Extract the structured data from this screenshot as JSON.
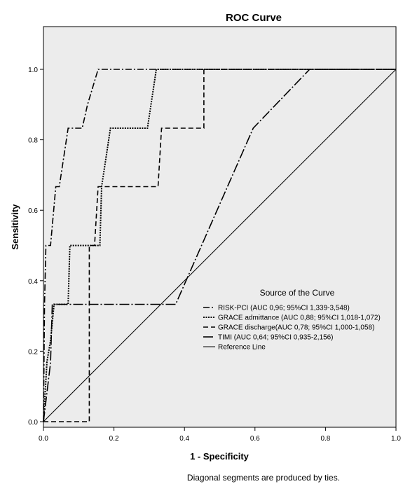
{
  "chart_data": {
    "type": "line",
    "title": "ROC Curve",
    "xlabel": "1 - Specificity",
    "ylabel": "Sensitivity",
    "xlim": [
      0,
      1
    ],
    "ylim": [
      -0.02,
      1.12
    ],
    "xticks": [
      0.0,
      0.2,
      0.4,
      0.6,
      0.8,
      1.0
    ],
    "yticks": [
      0.0,
      0.2,
      0.4,
      0.6,
      0.8,
      1.0
    ],
    "tick_labels": [
      "0.0",
      "0.2",
      "0.4",
      "0.6",
      "0.8",
      "1.0"
    ],
    "grid": false,
    "plot_background": "#ececec",
    "legend": {
      "title": "Source of the Curve",
      "placement": "lower-right"
    },
    "footnote": "Diagonal segments are produced by ties.",
    "series": [
      {
        "name": "RISK-PCI (AUC 0,96; 95%CI 1,339-3,548)",
        "dash": "dash-dot",
        "x": [
          0,
          0.003,
          0.007,
          0.013,
          0.02,
          0.035,
          0.045,
          0.07,
          0.085,
          0.11,
          0.125,
          0.155,
          0.16,
          0.2,
          0.32,
          1.0
        ],
        "y": [
          0,
          0.33,
          0.5,
          0.5,
          0.5,
          0.667,
          0.667,
          0.833,
          0.833,
          0.833,
          0.9,
          1.0,
          1.0,
          1.0,
          1.0,
          1.0
        ]
      },
      {
        "name": "GRACE admittance (AUC 0,88; 95%CI 1,018-1,072)",
        "dash": "dotted",
        "x": [
          0,
          0.01,
          0.02,
          0.03,
          0.04,
          0.07,
          0.075,
          0.16,
          0.165,
          0.19,
          0.295,
          0.32,
          1.0
        ],
        "y": [
          0,
          0.17,
          0.23,
          0.333,
          0.333,
          0.333,
          0.5,
          0.5,
          0.667,
          0.833,
          0.833,
          1.0,
          1.0
        ]
      },
      {
        "name": "GRACE discharge(AUC 0,78; 95%CI 1,000-1,058)",
        "dash": "dashed",
        "x": [
          0,
          0.13,
          0.13,
          0.145,
          0.155,
          0.325,
          0.335,
          0.455,
          0.455,
          1.0
        ],
        "y": [
          0,
          0,
          0.5,
          0.5,
          0.667,
          0.667,
          0.833,
          0.833,
          1.0,
          1.0
        ]
      },
      {
        "name": "TIMI (AUC 0,64; 95%CI 0,935-2,156)",
        "dash": "long-dash-dot",
        "x": [
          0,
          0.02,
          0.025,
          0.375,
          0.595,
          0.755,
          1.0
        ],
        "y": [
          0,
          0.167,
          0.333,
          0.333,
          0.833,
          1.0,
          1.0
        ]
      },
      {
        "name": "Reference Line",
        "dash": "solid",
        "x": [
          0,
          1
        ],
        "y": [
          0,
          1
        ]
      }
    ]
  }
}
